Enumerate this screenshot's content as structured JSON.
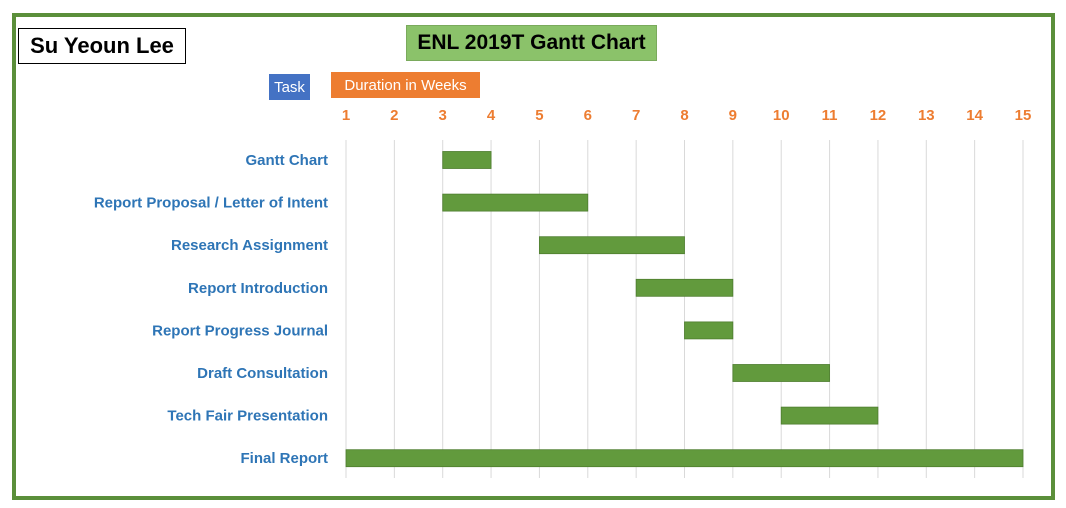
{
  "header": {
    "author": "Su Yeoun Lee",
    "title": "ENL 2019T Gantt Chart",
    "legend_task": "Task",
    "legend_duration": "Duration in Weeks"
  },
  "colors": {
    "frame": "#5b8f3a",
    "bar": "#629a3d",
    "title_bg": "#8bc26a",
    "task_legend": "#4472c4",
    "duration_legend": "#ed7d31",
    "task_label": "#2e75b6",
    "tick_label": "#ed7d31",
    "grid": "#d9d9d9"
  },
  "chart_data": {
    "type": "bar",
    "orientation": "horizontal",
    "title": "ENL 2019T Gantt Chart",
    "xlabel": "Duration in Weeks",
    "ylabel": "Task",
    "xlim": [
      1,
      15
    ],
    "xticks": [
      1,
      2,
      3,
      4,
      5,
      6,
      7,
      8,
      9,
      10,
      11,
      12,
      13,
      14,
      15
    ],
    "x_axis_position": "top",
    "grid": true,
    "tasks": [
      {
        "label": "Gantt Chart",
        "start": 3,
        "end": 4
      },
      {
        "label": "Report Proposal / Letter of Intent",
        "start": 3,
        "end": 6
      },
      {
        "label": "Research Assignment",
        "start": 5,
        "end": 8
      },
      {
        "label": "Report Introduction",
        "start": 7,
        "end": 9
      },
      {
        "label": "Report Progress Journal",
        "start": 8,
        "end": 9
      },
      {
        "label": "Draft Consultation",
        "start": 9,
        "end": 11
      },
      {
        "label": "Tech Fair Presentation",
        "start": 10,
        "end": 12
      },
      {
        "label": "Final Report",
        "start": 1,
        "end": 15
      }
    ]
  }
}
